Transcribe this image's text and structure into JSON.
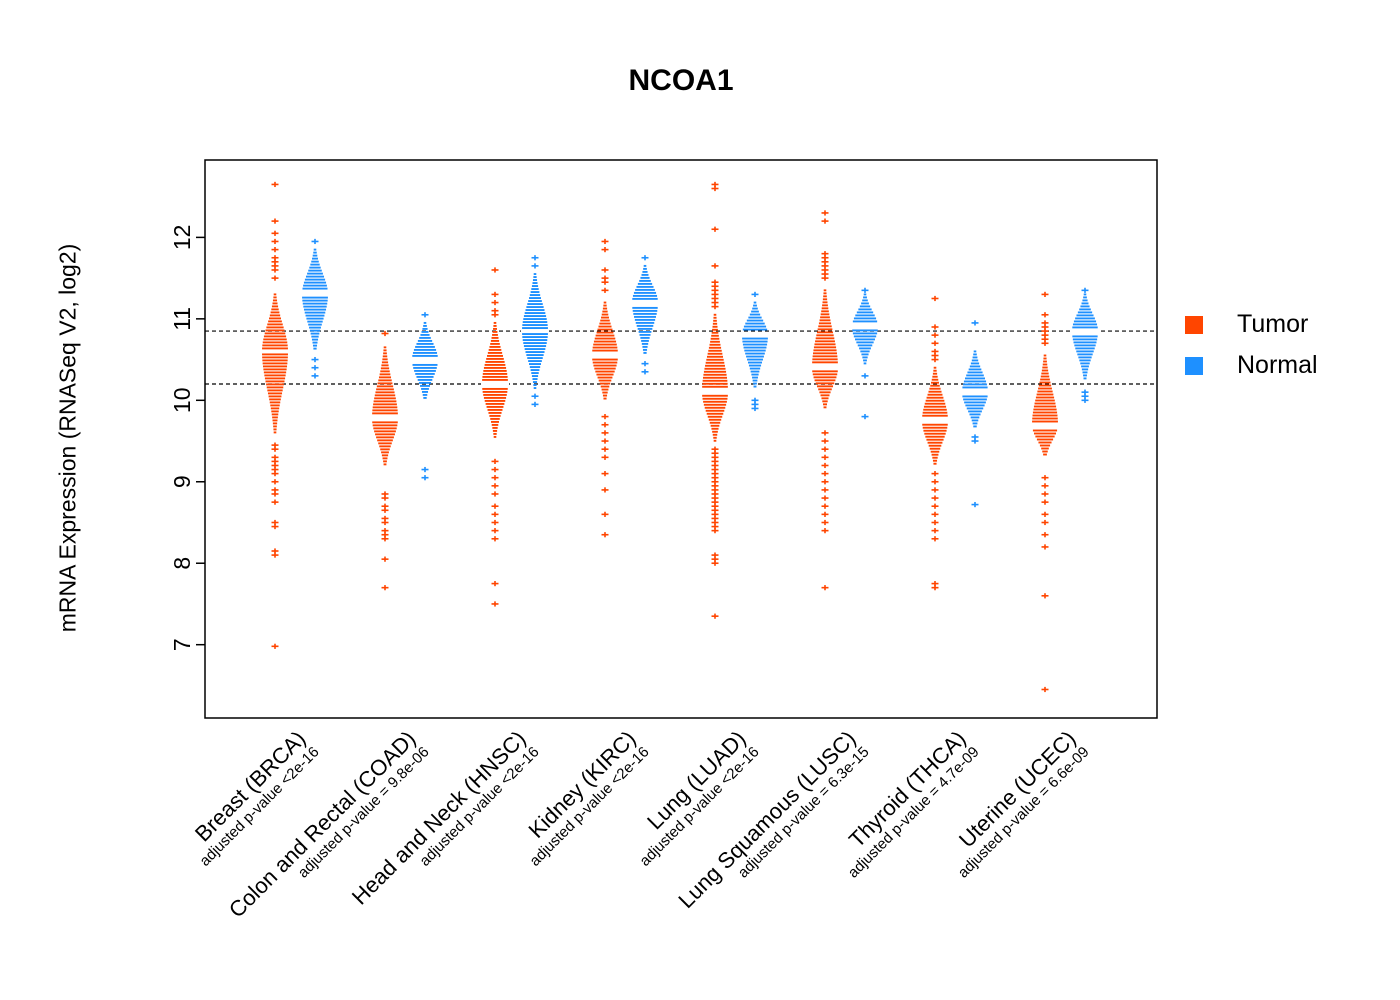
{
  "chart_data": {
    "type": "violin",
    "title": "NCOA1",
    "ylabel": "mRNA Expression (RNASeq V2, log2)",
    "ylim": [
      6.1,
      12.95
    ],
    "yticks": [
      7,
      8,
      9,
      10,
      11,
      12
    ],
    "reference_lines": [
      10.85,
      10.2
    ],
    "grid": false,
    "legend_position": "right",
    "legend": [
      {
        "label": "Tumor",
        "color": "#FF4500"
      },
      {
        "label": "Normal",
        "color": "#1E90FF"
      }
    ],
    "groups": [
      {
        "label": "Breast (BRCA)",
        "pvalue": "adjusted p-value <2e-16",
        "tumor": {
          "median": 10.6,
          "body": [
            9.6,
            11.3
          ],
          "outliers": [
            12.65,
            12.2,
            12.05,
            11.95,
            11.85,
            11.75,
            11.7,
            11.65,
            11.6,
            11.5,
            9.45,
            9.4,
            9.3,
            9.25,
            9.2,
            9.15,
            9.1,
            9.0,
            8.9,
            8.85,
            8.75,
            8.5,
            8.45,
            8.15,
            8.1,
            6.98
          ]
        },
        "normal": {
          "median": 11.3,
          "body": [
            10.6,
            11.85
          ],
          "outliers": [
            11.95,
            10.5,
            10.4,
            10.3
          ]
        }
      },
      {
        "label": "Colon and Rectal (COAD)",
        "pvalue": "adjusted p-value = 9.8e-06",
        "tumor": {
          "median": 9.78,
          "body": [
            9.2,
            10.65
          ],
          "outliers": [
            10.82,
            8.85,
            8.8,
            8.7,
            8.65,
            8.55,
            8.5,
            8.4,
            8.35,
            8.3,
            8.05,
            7.7
          ]
        },
        "normal": {
          "median": 10.5,
          "body": [
            10.0,
            10.95
          ],
          "outliers": [
            11.05,
            9.15,
            9.05
          ]
        }
      },
      {
        "label": "Head and Neck (HNSC)",
        "pvalue": "adjusted p-value <2e-16",
        "tumor": {
          "median": 10.2,
          "body": [
            9.55,
            10.95
          ],
          "outliers": [
            11.6,
            11.3,
            11.2,
            11.1,
            11.05,
            9.25,
            9.15,
            9.05,
            8.95,
            8.85,
            8.7,
            8.6,
            8.5,
            8.4,
            8.3,
            7.75,
            7.5
          ]
        },
        "normal": {
          "median": 10.85,
          "body": [
            10.15,
            11.55
          ],
          "outliers": [
            11.75,
            11.65,
            10.05,
            9.95
          ]
        }
      },
      {
        "label": "Kidney (KIRC)",
        "pvalue": "adjusted p-value <2e-16",
        "tumor": {
          "median": 10.55,
          "body": [
            10.0,
            11.2
          ],
          "outliers": [
            11.95,
            11.85,
            11.6,
            11.5,
            11.45,
            11.35,
            9.8,
            9.7,
            9.6,
            9.5,
            9.4,
            9.3,
            9.1,
            8.9,
            8.6,
            8.35
          ]
        },
        "normal": {
          "median": 11.2,
          "body": [
            10.55,
            11.65
          ],
          "outliers": [
            11.75,
            10.45,
            10.35
          ]
        }
      },
      {
        "label": "Lung (LUAD)",
        "pvalue": "adjusted p-value <2e-16",
        "tumor": {
          "median": 10.1,
          "body": [
            9.5,
            11.05
          ],
          "outliers": [
            12.65,
            12.6,
            12.1,
            11.65,
            11.45,
            11.4,
            11.35,
            11.3,
            11.25,
            11.2,
            11.15,
            9.4,
            9.35,
            9.3,
            9.25,
            9.2,
            9.15,
            9.1,
            9.05,
            9.0,
            8.95,
            8.9,
            8.85,
            8.8,
            8.75,
            8.7,
            8.65,
            8.6,
            8.55,
            8.5,
            8.45,
            8.4,
            8.1,
            8.05,
            8.0,
            7.35
          ]
        },
        "normal": {
          "median": 10.8,
          "body": [
            10.15,
            11.2
          ],
          "outliers": [
            11.3,
            10.0,
            9.95,
            9.9
          ]
        }
      },
      {
        "label": "Lung Squamous (LUSC)",
        "pvalue": "adjusted p-value = 6.3e-15",
        "tumor": {
          "median": 10.4,
          "body": [
            9.9,
            11.35
          ],
          "outliers": [
            12.3,
            12.2,
            11.8,
            11.75,
            11.7,
            11.65,
            11.6,
            11.55,
            11.5,
            9.6,
            9.5,
            9.4,
            9.3,
            9.2,
            9.1,
            9.0,
            8.9,
            8.8,
            8.7,
            8.6,
            8.5,
            8.4,
            7.7
          ]
        },
        "normal": {
          "median": 10.9,
          "body": [
            10.45,
            11.3
          ],
          "outliers": [
            11.35,
            10.3,
            9.8
          ]
        }
      },
      {
        "label": "Thyroid (THCA)",
        "pvalue": "adjusted p-value = 4.7e-09",
        "tumor": {
          "median": 9.75,
          "body": [
            9.2,
            10.4
          ],
          "outliers": [
            11.25,
            10.9,
            10.8,
            10.7,
            10.6,
            10.55,
            10.5,
            9.1,
            9.0,
            8.9,
            8.8,
            8.7,
            8.6,
            8.5,
            8.4,
            8.3,
            7.75,
            7.7
          ]
        },
        "normal": {
          "median": 10.1,
          "body": [
            9.65,
            10.6
          ],
          "outliers": [
            10.95,
            9.55,
            9.5,
            8.72
          ]
        }
      },
      {
        "label": "Uterine (UCEC)",
        "pvalue": "adjusted p-value = 6.6e-09",
        "tumor": {
          "median": 9.7,
          "body": [
            9.3,
            10.55
          ],
          "outliers": [
            11.3,
            11.05,
            10.95,
            10.9,
            10.85,
            10.8,
            10.75,
            10.7,
            9.05,
            8.95,
            8.85,
            8.75,
            8.6,
            8.5,
            8.35,
            8.2,
            7.6,
            6.45
          ]
        },
        "normal": {
          "median": 10.85,
          "body": [
            10.25,
            11.3
          ],
          "outliers": [
            11.35,
            10.1,
            10.05,
            10.0
          ]
        }
      }
    ]
  }
}
